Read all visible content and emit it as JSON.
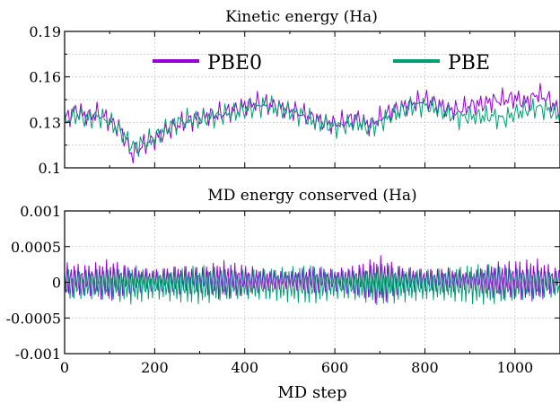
{
  "chart_data": [
    {
      "type": "line",
      "title": "Kinetic energy (Ha)",
      "xlabel": "",
      "ylabel": "",
      "xlim": [
        0,
        1100
      ],
      "ylim": [
        0.1,
        0.19
      ],
      "xticks": [
        0,
        200,
        400,
        600,
        800,
        1000
      ],
      "yticks": [
        0.1,
        0.13,
        0.16,
        0.19
      ],
      "ytick_labels": [
        "0.1",
        "0.13",
        "0.16",
        "0.19"
      ],
      "grid": true,
      "legend": "top, horizontal",
      "series": [
        {
          "name": "PBE0",
          "color": "#9400d3",
          "x": [
            0,
            25,
            50,
            75,
            100,
            125,
            150,
            175,
            200,
            225,
            250,
            275,
            300,
            325,
            350,
            375,
            400,
            425,
            450,
            475,
            500,
            525,
            550,
            575,
            600,
            625,
            650,
            675,
            700,
            725,
            750,
            775,
            800,
            825,
            850,
            875,
            900,
            925,
            950,
            975,
            1000,
            1025,
            1050,
            1075,
            1100
          ],
          "y": [
            0.132,
            0.138,
            0.134,
            0.136,
            0.131,
            0.125,
            0.108,
            0.115,
            0.119,
            0.124,
            0.128,
            0.131,
            0.133,
            0.135,
            0.136,
            0.138,
            0.141,
            0.143,
            0.142,
            0.14,
            0.138,
            0.136,
            0.133,
            0.13,
            0.129,
            0.131,
            0.133,
            0.128,
            0.133,
            0.137,
            0.14,
            0.143,
            0.145,
            0.142,
            0.139,
            0.138,
            0.141,
            0.142,
            0.144,
            0.145,
            0.146,
            0.143,
            0.149,
            0.145,
            0.136
          ]
        },
        {
          "name": "PBE",
          "color": "#009e73",
          "x": [
            0,
            25,
            50,
            75,
            100,
            125,
            150,
            175,
            200,
            225,
            250,
            275,
            300,
            325,
            350,
            375,
            400,
            425,
            450,
            475,
            500,
            525,
            550,
            575,
            600,
            625,
            650,
            675,
            700,
            725,
            750,
            775,
            800,
            825,
            850,
            875,
            900,
            925,
            950,
            975,
            1000,
            1025,
            1050,
            1075,
            1100
          ],
          "y": [
            0.13,
            0.135,
            0.132,
            0.134,
            0.13,
            0.124,
            0.114,
            0.116,
            0.12,
            0.126,
            0.13,
            0.132,
            0.132,
            0.133,
            0.135,
            0.136,
            0.138,
            0.14,
            0.141,
            0.139,
            0.137,
            0.135,
            0.131,
            0.129,
            0.127,
            0.128,
            0.13,
            0.126,
            0.13,
            0.134,
            0.138,
            0.141,
            0.141,
            0.139,
            0.136,
            0.133,
            0.134,
            0.134,
            0.134,
            0.132,
            0.136,
            0.138,
            0.14,
            0.138,
            0.134
          ]
        }
      ]
    },
    {
      "type": "line",
      "title": "MD energy conserved (Ha)",
      "xlabel": "MD step",
      "ylabel": "",
      "xlim": [
        0,
        1100
      ],
      "ylim": [
        -0.001,
        0.001
      ],
      "xticks": [
        0,
        200,
        400,
        600,
        800,
        1000
      ],
      "yticks": [
        -0.001,
        -0.0005,
        0,
        0.0005,
        0.001
      ],
      "ytick_labels": [
        "-0.001",
        "-0.0005",
        "0",
        "0.0005",
        "0.001"
      ],
      "grid": true,
      "series": [
        {
          "name": "PBE0",
          "color": "#9400d3",
          "x": [
            0,
            50,
            100,
            150,
            200,
            250,
            300,
            350,
            400,
            450,
            500,
            550,
            600,
            650,
            700,
            750,
            800,
            850,
            900,
            950,
            1000,
            1050,
            1100
          ],
          "amplitude": [
            0.00025,
            0.00022,
            0.0003,
            0.00018,
            0.00015,
            0.0002,
            0.00018,
            0.00028,
            0.00022,
            0.00015,
            0.00012,
            0.0002,
            0.00015,
            0.00022,
            0.00035,
            0.00018,
            0.00015,
            0.00018,
            0.00012,
            0.00025,
            0.00028,
            0.0003,
            0.00015
          ]
        },
        {
          "name": "PBE",
          "color": "#009e73",
          "x": [
            0,
            50,
            100,
            150,
            200,
            250,
            300,
            350,
            400,
            450,
            500,
            550,
            600,
            650,
            700,
            750,
            800,
            850,
            900,
            950,
            1000,
            1050,
            1100
          ],
          "amplitude": [
            0.00022,
            0.0002,
            0.00022,
            0.00028,
            0.0002,
            0.00025,
            0.00028,
            0.00022,
            0.0002,
            0.00022,
            0.00025,
            0.00028,
            0.0002,
            0.00022,
            0.0003,
            0.00025,
            0.00022,
            0.00022,
            0.00028,
            0.00028,
            0.00022,
            0.0002,
            0.00018
          ]
        }
      ]
    }
  ]
}
